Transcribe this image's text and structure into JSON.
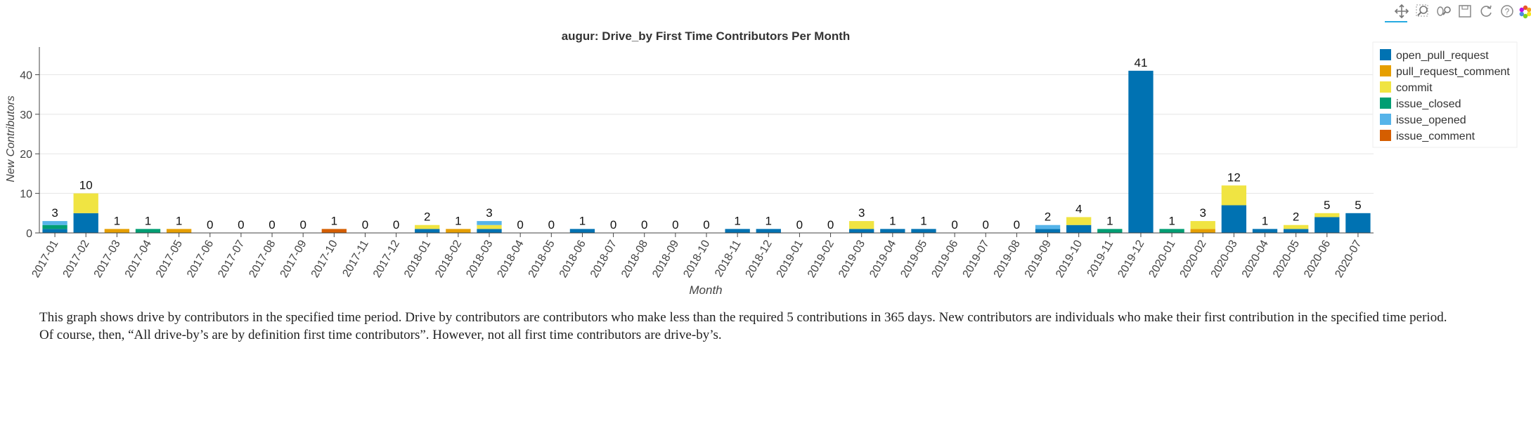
{
  "toolbar": {
    "tools": [
      {
        "name": "pan-tool-icon"
      },
      {
        "name": "box-zoom-tool-icon"
      },
      {
        "name": "wheel-zoom-tool-icon"
      },
      {
        "name": "save-tool-icon"
      },
      {
        "name": "reset-tool-icon"
      },
      {
        "name": "help-tool-icon"
      },
      {
        "name": "bokeh-logo-icon"
      }
    ]
  },
  "description": {
    "line1": "This graph shows drive by contributors in the specified time period. Drive by contributors are contributors who make less than the required 5 contributions in 365 days. New contributors are individuals who make their first contribution in the specified time period.",
    "line2": "Of course, then, “All drive-by’s are by definition first time contributors”. However, not all first time contributors are drive-by’s."
  },
  "chart_data": {
    "type": "bar",
    "stacked": true,
    "title": "augur: Drive_by First Time Contributors Per Month",
    "xlabel": "Month",
    "ylabel": "New Contributors",
    "ylim": [
      0,
      47
    ],
    "yticks": [
      0,
      10,
      20,
      30,
      40
    ],
    "grid": "horizontal",
    "legend_position": "top-right",
    "categories": [
      "2017-01",
      "2017-02",
      "2017-03",
      "2017-04",
      "2017-05",
      "2017-06",
      "2017-07",
      "2017-08",
      "2017-09",
      "2017-10",
      "2017-11",
      "2017-12",
      "2018-01",
      "2018-02",
      "2018-03",
      "2018-04",
      "2018-05",
      "2018-06",
      "2018-07",
      "2018-08",
      "2018-09",
      "2018-10",
      "2018-11",
      "2018-12",
      "2019-01",
      "2019-02",
      "2019-03",
      "2019-04",
      "2019-05",
      "2019-06",
      "2019-07",
      "2019-08",
      "2019-09",
      "2019-10",
      "2019-11",
      "2019-12",
      "2020-01",
      "2020-02",
      "2020-03",
      "2020-04",
      "2020-05",
      "2020-06",
      "2020-07"
    ],
    "totals": [
      3,
      10,
      1,
      1,
      1,
      0,
      0,
      0,
      0,
      1,
      0,
      0,
      2,
      1,
      3,
      0,
      0,
      1,
      0,
      0,
      0,
      0,
      1,
      1,
      0,
      0,
      3,
      1,
      1,
      0,
      0,
      0,
      2,
      4,
      1,
      41,
      1,
      3,
      12,
      1,
      2,
      5,
      5
    ],
    "series": [
      {
        "name": "open_pull_request",
        "color": "#0072b2",
        "values": [
          1,
          5,
          0,
          0,
          0,
          0,
          0,
          0,
          0,
          0,
          0,
          0,
          1,
          0,
          1,
          0,
          0,
          1,
          0,
          0,
          0,
          0,
          1,
          1,
          0,
          0,
          1,
          1,
          1,
          0,
          0,
          0,
          1,
          2,
          0,
          41,
          0,
          0,
          7,
          1,
          1,
          4,
          5
        ]
      },
      {
        "name": "pull_request_comment",
        "color": "#e69f00",
        "values": [
          0,
          0,
          1,
          0,
          1,
          0,
          0,
          0,
          0,
          0,
          0,
          0,
          0,
          1,
          0,
          0,
          0,
          0,
          0,
          0,
          0,
          0,
          0,
          0,
          0,
          0,
          0,
          0,
          0,
          0,
          0,
          0,
          0,
          0,
          0,
          0,
          0,
          1,
          0,
          0,
          0,
          0,
          0
        ]
      },
      {
        "name": "commit",
        "color": "#f0e442",
        "values": [
          0,
          5,
          0,
          0,
          0,
          0,
          0,
          0,
          0,
          0,
          0,
          0,
          1,
          0,
          1,
          0,
          0,
          0,
          0,
          0,
          0,
          0,
          0,
          0,
          0,
          0,
          2,
          0,
          0,
          0,
          0,
          0,
          0,
          2,
          0,
          0,
          0,
          2,
          5,
          0,
          1,
          1,
          0
        ]
      },
      {
        "name": "issue_closed",
        "color": "#009e73",
        "values": [
          1,
          0,
          0,
          1,
          0,
          0,
          0,
          0,
          0,
          0,
          0,
          0,
          0,
          0,
          0,
          0,
          0,
          0,
          0,
          0,
          0,
          0,
          0,
          0,
          0,
          0,
          0,
          0,
          0,
          0,
          0,
          0,
          0,
          0,
          1,
          0,
          1,
          0,
          0,
          0,
          0,
          0,
          0
        ]
      },
      {
        "name": "issue_opened",
        "color": "#56b4e9",
        "values": [
          1,
          0,
          0,
          0,
          0,
          0,
          0,
          0,
          0,
          0,
          0,
          0,
          0,
          0,
          1,
          0,
          0,
          0,
          0,
          0,
          0,
          0,
          0,
          0,
          0,
          0,
          0,
          0,
          0,
          0,
          0,
          0,
          1,
          0,
          0,
          0,
          0,
          0,
          0,
          0,
          0,
          0,
          0
        ]
      },
      {
        "name": "issue_comment",
        "color": "#d55e00",
        "values": [
          0,
          0,
          0,
          0,
          0,
          0,
          0,
          0,
          0,
          1,
          0,
          0,
          0,
          0,
          0,
          0,
          0,
          0,
          0,
          0,
          0,
          0,
          0,
          0,
          0,
          0,
          0,
          0,
          0,
          0,
          0,
          0,
          0,
          0,
          0,
          0,
          0,
          0,
          0,
          0,
          0,
          0,
          0
        ]
      }
    ]
  }
}
